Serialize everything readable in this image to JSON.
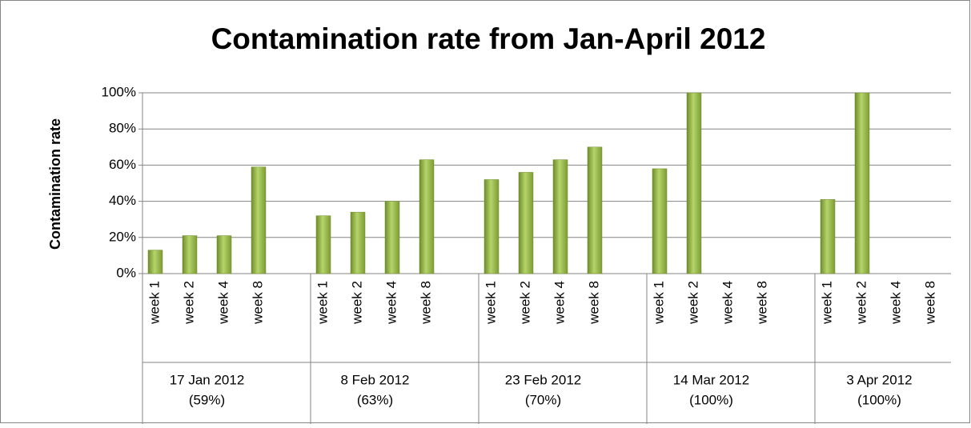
{
  "chart_data": {
    "type": "bar",
    "title": "Contamination rate from Jan-April 2012",
    "y_axis_label": "Contamination rate",
    "ylim": [
      0,
      100
    ],
    "yticks": [
      {
        "value": 0,
        "label": "0%"
      },
      {
        "value": 20,
        "label": "20%"
      },
      {
        "value": 40,
        "label": "40%"
      },
      {
        "value": 60,
        "label": "60%"
      },
      {
        "value": 80,
        "label": "80%"
      },
      {
        "value": 100,
        "label": "100%"
      }
    ],
    "grid": true,
    "color": "#9bbb59",
    "groups": [
      {
        "label": [
          "17 Jan 2012",
          "(59%)"
        ],
        "categories": [
          "week 1",
          "week 2",
          "week 4",
          "week 8"
        ],
        "values": [
          13,
          21,
          21,
          59
        ]
      },
      {
        "label": [
          "8 Feb 2012",
          "(63%)"
        ],
        "categories": [
          "week 1",
          "week 2",
          "week 4",
          "week 8"
        ],
        "values": [
          32,
          34,
          40,
          63
        ]
      },
      {
        "label": [
          "23 Feb 2012",
          "(70%)"
        ],
        "categories": [
          "week 1",
          "week 2",
          "week 4",
          "week 8"
        ],
        "values": [
          52,
          56,
          63,
          70
        ]
      },
      {
        "label": [
          "14 Mar 2012",
          "(100%)"
        ],
        "categories": [
          "week 1",
          "week 2",
          "week 4",
          "week 8"
        ],
        "values": [
          58,
          100,
          null,
          null
        ]
      },
      {
        "label": [
          "3 Apr 2012",
          "(100%)"
        ],
        "categories": [
          "week 1",
          "week 2",
          "week 4",
          "week 8"
        ],
        "values": [
          41,
          100,
          null,
          null
        ]
      }
    ]
  }
}
